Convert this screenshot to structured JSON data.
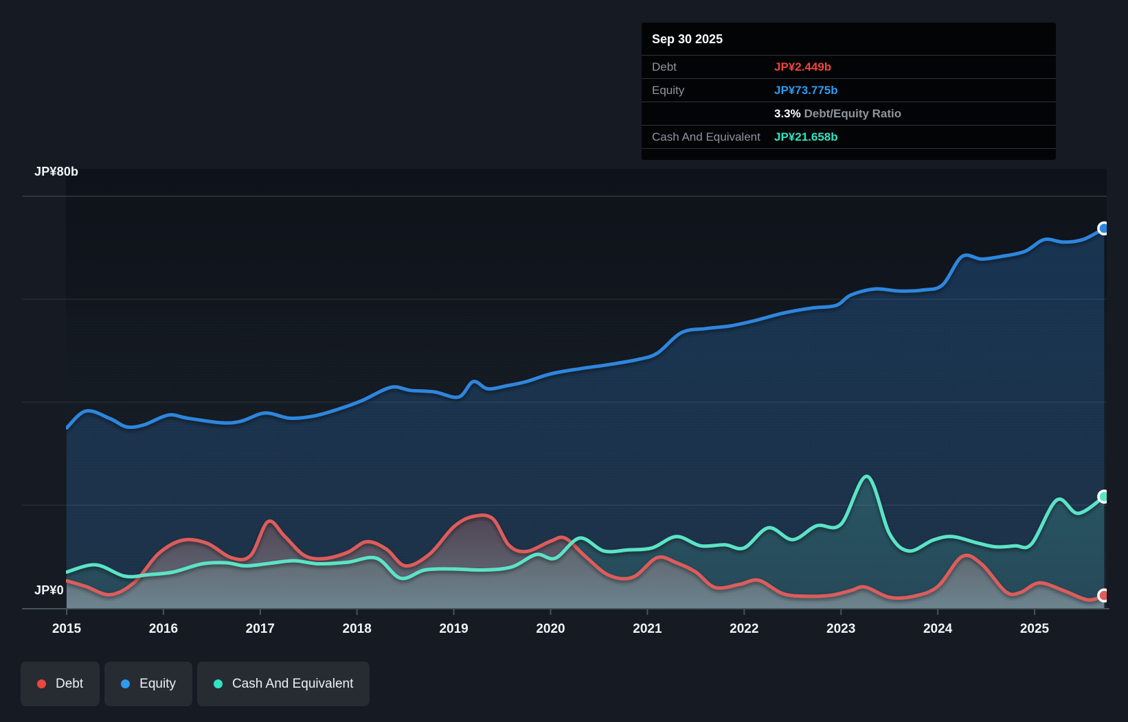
{
  "colors": {
    "debt_line": "#dd5c5c",
    "debt_accent": "#ee453c",
    "equity_line": "#2e86dd",
    "equity_accent": "#2d9bf0",
    "cash_line": "#5ce3c7",
    "cash_accent": "#33e2c2",
    "axis_line": "#4a525a",
    "grid_line": "#ffffff",
    "plot_bg_top": "#0e1219",
    "plot_bg_bottom": "#1a222b",
    "page_bg": "#151a23"
  },
  "tooltip": {
    "date": "Sep 30 2025",
    "debt_label": "Debt",
    "debt_value": "JP¥2.449b",
    "equity_label": "Equity",
    "equity_value": "JP¥73.775b",
    "ratio_value": "3.3%",
    "ratio_label": "Debt/Equity Ratio",
    "cash_label": "Cash And Equivalent",
    "cash_value": "JP¥21.658b"
  },
  "y_axis": {
    "top_label": "JP¥80b",
    "zero_label": "JP¥0"
  },
  "legend": {
    "items": [
      {
        "label": "Debt",
        "key": "debt"
      },
      {
        "label": "Equity",
        "key": "equity"
      },
      {
        "label": "Cash And Equivalent",
        "key": "cash"
      }
    ]
  },
  "chart_data": {
    "type": "area",
    "x_tick_labels": [
      "2015",
      "2016",
      "2017",
      "2018",
      "2019",
      "2020",
      "2021",
      "2022",
      "2023",
      "2024",
      "2025"
    ],
    "x_range": [
      2015,
      2025.72
    ],
    "ylim": [
      0,
      80
    ],
    "y_gridline_values": [
      80,
      60,
      40,
      20,
      0
    ],
    "grid": true,
    "legend_position": "bottom-left",
    "ylabel": "JP¥ billions",
    "series": [
      {
        "name": "Debt",
        "key": "debt",
        "end_value": 2.449,
        "points": [
          [
            2015.0,
            5.3
          ],
          [
            2015.2,
            4.2
          ],
          [
            2015.45,
            2.6
          ],
          [
            2015.7,
            5.0
          ],
          [
            2015.95,
            10.6
          ],
          [
            2016.2,
            13.2
          ],
          [
            2016.45,
            12.6
          ],
          [
            2016.7,
            9.8
          ],
          [
            2016.9,
            10.2
          ],
          [
            2017.08,
            16.8
          ],
          [
            2017.25,
            14.0
          ],
          [
            2017.45,
            10.3
          ],
          [
            2017.65,
            9.6
          ],
          [
            2017.9,
            10.8
          ],
          [
            2018.1,
            12.9
          ],
          [
            2018.3,
            11.5
          ],
          [
            2018.5,
            8.2
          ],
          [
            2018.75,
            10.5
          ],
          [
            2019.0,
            15.8
          ],
          [
            2019.2,
            17.8
          ],
          [
            2019.4,
            17.4
          ],
          [
            2019.57,
            12.2
          ],
          [
            2019.75,
            11.0
          ],
          [
            2020.0,
            13.0
          ],
          [
            2020.15,
            13.6
          ],
          [
            2020.35,
            10.2
          ],
          [
            2020.6,
            6.4
          ],
          [
            2020.85,
            6.0
          ],
          [
            2021.1,
            9.8
          ],
          [
            2021.3,
            8.8
          ],
          [
            2021.5,
            7.0
          ],
          [
            2021.7,
            4.0
          ],
          [
            2021.95,
            4.6
          ],
          [
            2022.15,
            5.4
          ],
          [
            2022.4,
            2.8
          ],
          [
            2022.65,
            2.3
          ],
          [
            2022.9,
            2.5
          ],
          [
            2023.1,
            3.4
          ],
          [
            2023.25,
            4.1
          ],
          [
            2023.5,
            2.1
          ],
          [
            2023.75,
            2.3
          ],
          [
            2024.0,
            4.2
          ],
          [
            2024.25,
            10.0
          ],
          [
            2024.45,
            8.6
          ],
          [
            2024.7,
            3.2
          ],
          [
            2024.85,
            3.0
          ],
          [
            2025.05,
            4.9
          ],
          [
            2025.3,
            3.4
          ],
          [
            2025.55,
            1.6
          ],
          [
            2025.72,
            2.449
          ]
        ]
      },
      {
        "name": "Equity",
        "key": "equity",
        "end_value": 73.775,
        "points": [
          [
            2015.0,
            35.0
          ],
          [
            2015.2,
            38.3
          ],
          [
            2015.45,
            36.8
          ],
          [
            2015.62,
            35.2
          ],
          [
            2015.8,
            35.6
          ],
          [
            2016.05,
            37.5
          ],
          [
            2016.25,
            36.9
          ],
          [
            2016.6,
            36.0
          ],
          [
            2016.8,
            36.3
          ],
          [
            2017.05,
            37.9
          ],
          [
            2017.3,
            36.9
          ],
          [
            2017.55,
            37.3
          ],
          [
            2017.8,
            38.6
          ],
          [
            2018.05,
            40.3
          ],
          [
            2018.35,
            42.9
          ],
          [
            2018.55,
            42.3
          ],
          [
            2018.8,
            42.0
          ],
          [
            2019.05,
            41.0
          ],
          [
            2019.2,
            44.0
          ],
          [
            2019.35,
            42.6
          ],
          [
            2019.55,
            43.2
          ],
          [
            2019.75,
            44.0
          ],
          [
            2020.0,
            45.5
          ],
          [
            2020.3,
            46.5
          ],
          [
            2020.6,
            47.3
          ],
          [
            2020.9,
            48.3
          ],
          [
            2021.1,
            49.5
          ],
          [
            2021.35,
            53.5
          ],
          [
            2021.6,
            54.3
          ],
          [
            2021.85,
            54.8
          ],
          [
            2022.1,
            55.8
          ],
          [
            2022.4,
            57.3
          ],
          [
            2022.7,
            58.3
          ],
          [
            2022.95,
            58.8
          ],
          [
            2023.1,
            60.8
          ],
          [
            2023.35,
            62.0
          ],
          [
            2023.6,
            61.6
          ],
          [
            2023.85,
            61.8
          ],
          [
            2024.05,
            62.8
          ],
          [
            2024.25,
            68.3
          ],
          [
            2024.45,
            67.8
          ],
          [
            2024.65,
            68.3
          ],
          [
            2024.9,
            69.3
          ],
          [
            2025.1,
            71.6
          ],
          [
            2025.3,
            71.1
          ],
          [
            2025.5,
            71.6
          ],
          [
            2025.72,
            73.775
          ]
        ]
      },
      {
        "name": "Cash And Equivalent",
        "key": "cash",
        "end_value": 21.658,
        "points": [
          [
            2015.0,
            7.0
          ],
          [
            2015.3,
            8.4
          ],
          [
            2015.6,
            6.2
          ],
          [
            2015.85,
            6.5
          ],
          [
            2016.1,
            7.0
          ],
          [
            2016.4,
            8.6
          ],
          [
            2016.65,
            8.8
          ],
          [
            2016.85,
            8.2
          ],
          [
            2017.1,
            8.7
          ],
          [
            2017.35,
            9.2
          ],
          [
            2017.6,
            8.6
          ],
          [
            2017.9,
            8.9
          ],
          [
            2018.2,
            9.7
          ],
          [
            2018.45,
            5.8
          ],
          [
            2018.7,
            7.4
          ],
          [
            2019.0,
            7.6
          ],
          [
            2019.3,
            7.4
          ],
          [
            2019.6,
            8.0
          ],
          [
            2019.85,
            10.4
          ],
          [
            2020.05,
            9.7
          ],
          [
            2020.3,
            13.6
          ],
          [
            2020.55,
            11.1
          ],
          [
            2020.8,
            11.3
          ],
          [
            2021.05,
            11.7
          ],
          [
            2021.3,
            13.9
          ],
          [
            2021.55,
            12.1
          ],
          [
            2021.8,
            12.3
          ],
          [
            2022.0,
            11.7
          ],
          [
            2022.25,
            15.6
          ],
          [
            2022.5,
            13.3
          ],
          [
            2022.75,
            16.0
          ],
          [
            2023.0,
            16.3
          ],
          [
            2023.27,
            25.6
          ],
          [
            2023.5,
            14.5
          ],
          [
            2023.7,
            11.1
          ],
          [
            2023.95,
            13.2
          ],
          [
            2024.15,
            13.9
          ],
          [
            2024.4,
            12.7
          ],
          [
            2024.6,
            11.9
          ],
          [
            2024.8,
            12.1
          ],
          [
            2024.97,
            12.5
          ],
          [
            2025.23,
            21.0
          ],
          [
            2025.45,
            18.4
          ],
          [
            2025.72,
            21.658
          ]
        ]
      }
    ]
  }
}
